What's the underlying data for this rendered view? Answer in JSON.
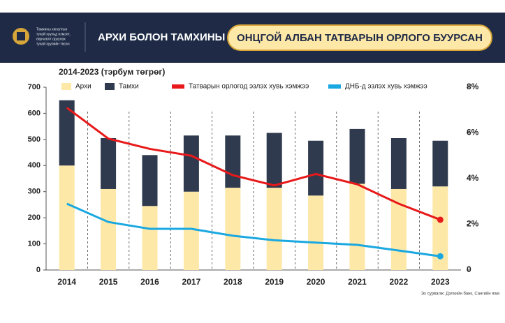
{
  "header": {
    "org_lines": [
      "Тамхины хяналтын",
      "тухай хуульд нэмэлт,",
      "өөрчлөлт оруулах",
      "тухай хуулийн төсөл"
    ],
    "title": "АРХИ БОЛОН ТАМХИНЫ",
    "highlight": "ОНЦГОЙ АЛБАН ТАТВАРЫН ОРЛОГО БУУРСАН"
  },
  "chart_data": {
    "type": "bar",
    "stacked": true,
    "subtitle": "2014-2023 (тэрбум төгрөг)",
    "source": "Эх сурвалж: Дэлхийн банк, Сангийн яам",
    "categories": [
      "2014",
      "2015",
      "2016",
      "2017",
      "2018",
      "2019",
      "2020",
      "2021",
      "2022",
      "2023"
    ],
    "series": [
      {
        "name": "Архи",
        "color": "#fde8a8",
        "values": [
          400,
          310,
          245,
          300,
          315,
          315,
          285,
          330,
          310,
          320
        ]
      },
      {
        "name": "Тамхи",
        "color": "#2f3a4e",
        "values": [
          250,
          195,
          195,
          215,
          200,
          210,
          210,
          210,
          195,
          175
        ]
      },
      {
        "name": "Татварын орлогод эзлэх хувь хэмжээ",
        "type": "line",
        "axis": "y2",
        "color": "#e8191a",
        "values": [
          7.1,
          5.75,
          5.3,
          5.0,
          4.15,
          3.7,
          4.2,
          3.75,
          2.9,
          2.2
        ]
      },
      {
        "name": "ДНБ-д эзлэх хувь хэмжээ",
        "type": "line",
        "axis": "y2",
        "color": "#1aa8e0",
        "values": [
          2.9,
          2.1,
          1.8,
          1.8,
          1.5,
          1.3,
          1.2,
          1.1,
          0.85,
          0.6
        ]
      }
    ],
    "ylim": [
      0,
      700
    ],
    "yticks": [
      0,
      100,
      200,
      300,
      400,
      500,
      600,
      700
    ],
    "y2lim": [
      0,
      8
    ],
    "y2ticks": [
      0,
      {
        "value": 2,
        "label": "2%"
      },
      {
        "value": 4,
        "label": "4%"
      },
      {
        "value": 6,
        "label": "6%"
      },
      {
        "value": 8,
        "label": "8%"
      }
    ],
    "legend": "top"
  }
}
